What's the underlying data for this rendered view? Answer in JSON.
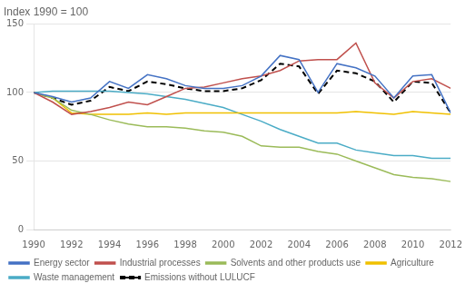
{
  "chart_data": {
    "type": "line",
    "title": "Index 1990 = 100",
    "x": [
      1990,
      1991,
      1992,
      1993,
      1994,
      1995,
      1996,
      1997,
      1998,
      1999,
      2000,
      2001,
      2002,
      2003,
      2004,
      2005,
      2006,
      2007,
      2008,
      2009,
      2010,
      2011,
      2012
    ],
    "series": [
      {
        "name": "Energy sector",
        "color": "#4472c4",
        "line_style": "solid",
        "values": [
          100,
          97,
          93,
          96,
          108,
          103,
          113,
          110,
          105,
          103,
          103,
          105,
          112,
          127,
          124,
          100,
          121,
          118,
          112,
          96,
          112,
          113,
          85
        ]
      },
      {
        "name": "Industrial processes",
        "color": "#c0504d",
        "line_style": "solid",
        "values": [
          100,
          93,
          84,
          86,
          89,
          93,
          91,
          97,
          103,
          104,
          107,
          110,
          112,
          116,
          123,
          124,
          124,
          136,
          107,
          96,
          108,
          110,
          103
        ]
      },
      {
        "name": "Solvents and other products use",
        "color": "#9bbb59",
        "line_style": "solid",
        "values": [
          100,
          96,
          87,
          84,
          80,
          77,
          75,
          75,
          74,
          72,
          71,
          68,
          61,
          60,
          60,
          57,
          55,
          50,
          45,
          40,
          38,
          37,
          35
        ]
      },
      {
        "name": "Agriculture",
        "color": "#f0c000",
        "line_style": "solid",
        "values": [
          100,
          96,
          85,
          84,
          84,
          84,
          85,
          84,
          85,
          85,
          85,
          85,
          85,
          85,
          85,
          85,
          85,
          86,
          85,
          84,
          86,
          85,
          84
        ]
      },
      {
        "name": "Waste management",
        "color": "#4bacc6",
        "line_style": "solid",
        "values": [
          100,
          101,
          101,
          101,
          101,
          100,
          99,
          97,
          95,
          92,
          89,
          84,
          79,
          73,
          68,
          63,
          63,
          58,
          56,
          54,
          54,
          52,
          52
        ]
      },
      {
        "name": "Emissions without LULUCF",
        "color": "#000000",
        "line_style": "dashed",
        "values": [
          100,
          96,
          91,
          94,
          104,
          101,
          108,
          106,
          103,
          101,
          101,
          103,
          109,
          121,
          119,
          99,
          116,
          114,
          108,
          93,
          108,
          107,
          85
        ]
      }
    ],
    "xlim": [
      1990,
      2012
    ],
    "xticks": [
      1990,
      1992,
      1994,
      1996,
      1998,
      2000,
      2002,
      2004,
      2006,
      2008,
      2010,
      2012
    ],
    "ylim": [
      0,
      150
    ],
    "yticks": [
      0,
      50,
      100,
      150
    ],
    "grid": "y",
    "legend": "lower left"
  }
}
